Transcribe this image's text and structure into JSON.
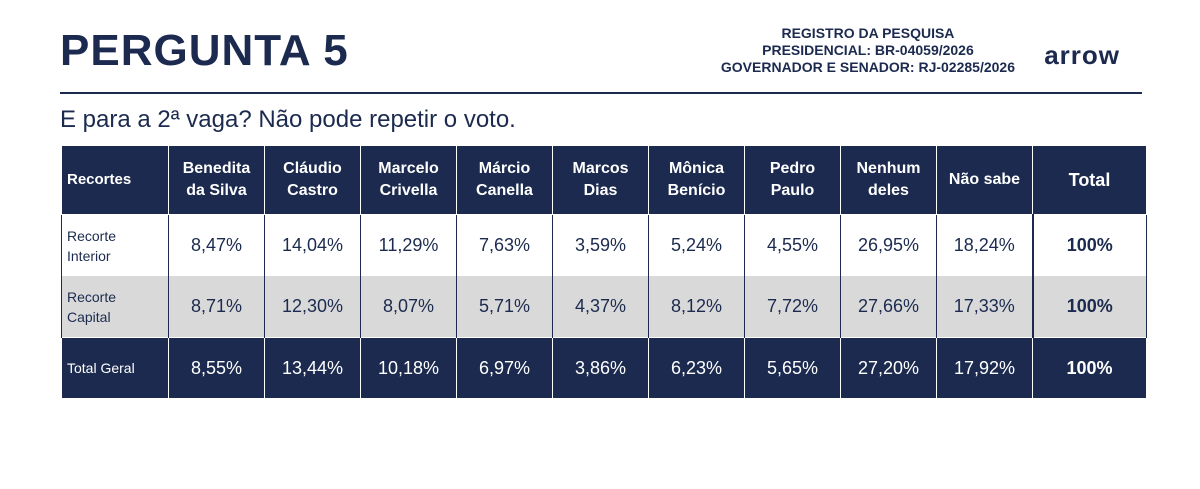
{
  "header": {
    "title": "PERGUNTA 5",
    "registro_line1": "REGISTRO DA PESQUISA",
    "registro_line2": "PRESIDENCIAL: BR-04059/2026",
    "registro_line3": "GOVERNADOR E SENADOR: RJ-02285/2026",
    "logo_text": "arrow"
  },
  "question": "E para a 2ª vaga? Não pode repetir o voto.",
  "colors": {
    "navy": "#1b2a4e",
    "grey_row": "#d9d9d9"
  },
  "table": {
    "columns": [
      {
        "line1": "Recortes",
        "line2": ""
      },
      {
        "line1": "Benedita",
        "line2": "da Silva"
      },
      {
        "line1": "Cláudio",
        "line2": "Castro"
      },
      {
        "line1": "Marcelo",
        "line2": "Crivella"
      },
      {
        "line1": "Márcio",
        "line2": "Canella"
      },
      {
        "line1": "Marcos",
        "line2": "Dias"
      },
      {
        "line1": "Mônica",
        "line2": "Benício"
      },
      {
        "line1": "Pedro",
        "line2": "Paulo"
      },
      {
        "line1": "Nenhum",
        "line2": "deles"
      },
      {
        "line1": "Não sabe",
        "line2": ""
      },
      {
        "line1": "Total",
        "line2": ""
      }
    ],
    "rows": [
      {
        "label_line1": "Recorte",
        "label_line2": "Interior",
        "values": [
          "8,47%",
          "14,04%",
          "11,29%",
          "7,63%",
          "3,59%",
          "5,24%",
          "4,55%",
          "26,95%",
          "18,24%"
        ],
        "total": "100%"
      },
      {
        "label_line1": "Recorte",
        "label_line2": "Capital",
        "values": [
          "8,71%",
          "12,30%",
          "8,07%",
          "5,71%",
          "4,37%",
          "8,12%",
          "7,72%",
          "27,66%",
          "17,33%"
        ],
        "total": "100%"
      },
      {
        "label_line1": "Total Geral",
        "label_line2": "",
        "values": [
          "8,55%",
          "13,44%",
          "10,18%",
          "6,97%",
          "3,86%",
          "6,23%",
          "5,65%",
          "27,20%",
          "17,92%"
        ],
        "total": "100%"
      }
    ]
  }
}
